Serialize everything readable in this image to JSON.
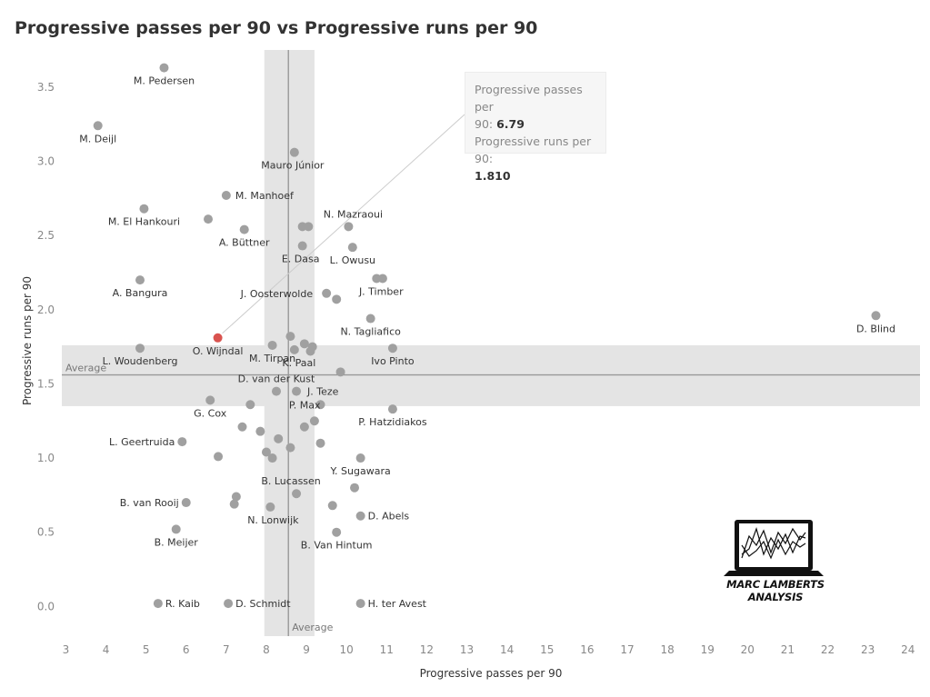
{
  "title": "Progressive passes per 90 vs Progressive runs per 90",
  "tooltip": {
    "x_label": "Progressive passes per",
    "x_label_2": "90:",
    "x_value": "6.79",
    "y_label": "Progressive runs per 90:",
    "y_value": "1.810"
  },
  "logo_text": "MARC LAMBERTS ANALYSIS",
  "colors": {
    "point": "#a0a0a0",
    "highlight": "#d9534f",
    "band": "#e4e4e4",
    "avg_line": "#999999"
  },
  "chart_data": {
    "type": "scatter",
    "title": "Progressive passes per 90 vs Progressive runs per 90",
    "xlabel": "Progressive passes per 90",
    "ylabel": "Progressive runs per 90",
    "xlim": [
      2.9,
      24.3
    ],
    "ylim": [
      -0.2,
      3.75
    ],
    "xticks": [
      3,
      4,
      5,
      6,
      7,
      8,
      9,
      10,
      11,
      12,
      13,
      14,
      15,
      16,
      17,
      18,
      19,
      20,
      21,
      22,
      23,
      24
    ],
    "yticks": [
      "0.0",
      "0.5",
      "1.0",
      "1.5",
      "2.0",
      "2.5",
      "3.0",
      "3.5"
    ],
    "average_x": 8.55,
    "average_y": 1.56,
    "average_label": "Average",
    "x_band": [
      7.95,
      9.2
    ],
    "y_band": [
      1.35,
      1.76
    ],
    "grid": false,
    "highlight": {
      "name": "O. Wijndal",
      "x": 6.79,
      "y": 1.81
    },
    "points": [
      {
        "name": "M. Pedersen",
        "x": 5.45,
        "y": 3.63
      },
      {
        "name": "M. Deijl",
        "x": 3.8,
        "y": 3.24
      },
      {
        "name": "Mauro Júnior",
        "x": 8.7,
        "y": 3.06
      },
      {
        "name": "M. Manhoef",
        "x": 7.0,
        "y": 2.77
      },
      {
        "name": "M. El Hankouri",
        "x": 4.95,
        "y": 2.68
      },
      {
        "name": "",
        "x": 6.55,
        "y": 2.61
      },
      {
        "name": "A. Büttner",
        "x": 7.45,
        "y": 2.54
      },
      {
        "name": "",
        "x": 8.9,
        "y": 2.56
      },
      {
        "name": "",
        "x": 9.05,
        "y": 2.56
      },
      {
        "name": "N. Mazraoui",
        "x": 10.05,
        "y": 2.56
      },
      {
        "name": "E. Dasa",
        "x": 8.9,
        "y": 2.43
      },
      {
        "name": "L. Owusu",
        "x": 10.15,
        "y": 2.42
      },
      {
        "name": "A. Bangura",
        "x": 4.85,
        "y": 2.2
      },
      {
        "name": "J. Timber",
        "x": 10.75,
        "y": 2.21
      },
      {
        "name": "",
        "x": 10.9,
        "y": 2.21
      },
      {
        "name": "J. Oosterwolde",
        "x": 9.5,
        "y": 2.11
      },
      {
        "name": "",
        "x": 9.75,
        "y": 2.07
      },
      {
        "name": "N. Tagliafico",
        "x": 10.6,
        "y": 1.94
      },
      {
        "name": "D. Blind",
        "x": 23.2,
        "y": 1.96
      },
      {
        "name": "L. Woudenberg",
        "x": 4.85,
        "y": 1.74
      },
      {
        "name": "M. Tirpan",
        "x": 8.15,
        "y": 1.76
      },
      {
        "name": "",
        "x": 8.6,
        "y": 1.82
      },
      {
        "name": "K. Paal",
        "x": 8.7,
        "y": 1.73
      },
      {
        "name": "",
        "x": 8.95,
        "y": 1.77
      },
      {
        "name": "",
        "x": 9.1,
        "y": 1.72
      },
      {
        "name": "",
        "x": 9.15,
        "y": 1.75
      },
      {
        "name": "Ivo Pinto",
        "x": 11.15,
        "y": 1.74
      },
      {
        "name": "",
        "x": 9.85,
        "y": 1.58
      },
      {
        "name": "D. van der Kust",
        "x": 8.25,
        "y": 1.45
      },
      {
        "name": "J. Teze",
        "x": 8.75,
        "y": 1.45
      },
      {
        "name": "G. Cox",
        "x": 6.6,
        "y": 1.39
      },
      {
        "name": "",
        "x": 7.6,
        "y": 1.36
      },
      {
        "name": "P. Max",
        "x": 9.35,
        "y": 1.36
      },
      {
        "name": "P. Hatzidiakos",
        "x": 11.15,
        "y": 1.33
      },
      {
        "name": "",
        "x": 9.2,
        "y": 1.25
      },
      {
        "name": "",
        "x": 7.4,
        "y": 1.21
      },
      {
        "name": "",
        "x": 7.85,
        "y": 1.18
      },
      {
        "name": "",
        "x": 8.95,
        "y": 1.21
      },
      {
        "name": "L. Geertruida",
        "x": 5.9,
        "y": 1.11
      },
      {
        "name": "",
        "x": 8.3,
        "y": 1.13
      },
      {
        "name": "",
        "x": 9.35,
        "y": 1.1
      },
      {
        "name": "",
        "x": 8.6,
        "y": 1.07
      },
      {
        "name": "",
        "x": 8.0,
        "y": 1.04
      },
      {
        "name": "",
        "x": 8.15,
        "y": 1.0
      },
      {
        "name": "",
        "x": 6.8,
        "y": 1.01
      },
      {
        "name": "Y. Sugawara",
        "x": 10.35,
        "y": 1.0
      },
      {
        "name": "B. Lucassen",
        "x": 8.75,
        "y": 0.76
      },
      {
        "name": "",
        "x": 10.2,
        "y": 0.8
      },
      {
        "name": "",
        "x": 7.25,
        "y": 0.74
      },
      {
        "name": "B. van Rooij",
        "x": 6.0,
        "y": 0.7
      },
      {
        "name": "",
        "x": 7.2,
        "y": 0.69
      },
      {
        "name": "N. Lonwijk",
        "x": 8.1,
        "y": 0.67
      },
      {
        "name": "",
        "x": 9.65,
        "y": 0.68
      },
      {
        "name": "D. Abels",
        "x": 10.35,
        "y": 0.61
      },
      {
        "name": "B. Meijer",
        "x": 5.75,
        "y": 0.52
      },
      {
        "name": "B. Van Hintum",
        "x": 9.75,
        "y": 0.5
      },
      {
        "name": "R. Kaib",
        "x": 5.3,
        "y": 0.02
      },
      {
        "name": "D. Schmidt",
        "x": 7.05,
        "y": 0.02
      },
      {
        "name": "H. ter Avest",
        "x": 10.35,
        "y": 0.02
      }
    ]
  }
}
